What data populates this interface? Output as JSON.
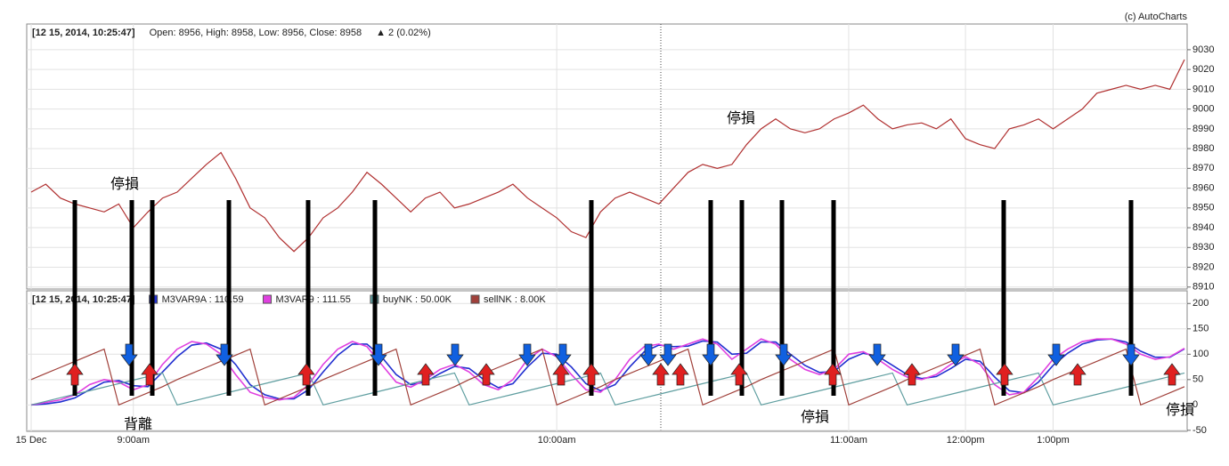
{
  "credit": "(c) AutoCharts",
  "annotations": [
    "停損",
    "停損",
    "背離",
    "停損",
    "停損"
  ],
  "chart_data": [
    {
      "type": "line",
      "header": [
        "[12 15, 2014, 10:25:47]",
        "Open: 8956, High: 8958, Low: 8956, Close: 8958",
        "▲ 2 (0.02%)"
      ],
      "series": [
        {
          "name": "Close",
          "color": "#b03030",
          "values": [
            8958,
            8962,
            8955,
            8952,
            8950,
            8948,
            8952,
            8940,
            8948,
            8955,
            8958,
            8965,
            8972,
            8978,
            8965,
            8950,
            8945,
            8935,
            8928,
            8935,
            8945,
            8950,
            8958,
            8968,
            8962,
            8955,
            8948,
            8955,
            8958,
            8950,
            8952,
            8955,
            8958,
            8962,
            8955,
            8950,
            8945,
            8938,
            8935,
            8948,
            8955,
            8958,
            8955,
            8952,
            8960,
            8968,
            8972,
            8970,
            8972,
            8982,
            8990,
            8995,
            8990,
            8988,
            8990,
            8995,
            8998,
            9002,
            8995,
            8990,
            8992,
            8993,
            8990,
            8995,
            8985,
            8982,
            8980,
            8990,
            8992,
            8995,
            8990,
            8995,
            9000,
            9008,
            9010,
            9012,
            9010,
            9012,
            9010,
            9025
          ]
        }
      ],
      "ylim": [
        8909,
        9043
      ],
      "yticks": [
        8910,
        8920,
        8930,
        8940,
        8950,
        8960,
        8970,
        8980,
        8990,
        9000,
        9010,
        9020,
        9030
      ],
      "grid": true
    },
    {
      "type": "line",
      "header": [
        "[12 15, 2014, 10:25:47]"
      ],
      "categories": [
        "15 Dec",
        null,
        null,
        null,
        null,
        null,
        null,
        "9:00am",
        null,
        null,
        null,
        null,
        null,
        null,
        null,
        null,
        null,
        null,
        null,
        null,
        null,
        null,
        null,
        null,
        null,
        null,
        null,
        null,
        null,
        null,
        null,
        null,
        null,
        null,
        null,
        null,
        "10:00am",
        null,
        null,
        null,
        null,
        null,
        null,
        null,
        null,
        null,
        null,
        null,
        null,
        null,
        null,
        null,
        null,
        null,
        null,
        null,
        "11:00am",
        null,
        null,
        null,
        null,
        null,
        null,
        null,
        "12:00pm",
        null,
        null,
        null,
        null,
        null,
        "1:00pm",
        null,
        null,
        null,
        null,
        null,
        null,
        null,
        null,
        null
      ],
      "series": [
        {
          "name": "M3VAR9A : 110.59",
          "color": "#2230d0",
          "values": [
            0,
            2,
            6,
            14,
            30,
            45,
            48,
            38,
            36,
            65,
            95,
            118,
            122,
            110,
            80,
            40,
            20,
            12,
            12,
            30,
            65,
            98,
            120,
            120,
            95,
            60,
            40,
            45,
            62,
            76,
            72,
            50,
            34,
            42,
            75,
            102,
            100,
            75,
            42,
            28,
            40,
            75,
            105,
            118,
            115,
            116,
            126,
            124,
            100,
            102,
            124,
            124,
            100,
            78,
            64,
            66,
            90,
            102,
            96,
            78,
            60,
            52,
            56,
            72,
            90,
            86,
            55,
            28,
            24,
            45,
            78,
            102,
            120,
            128,
            130,
            124,
            106,
            94,
            94,
            110.59
          ]
        },
        {
          "name": "M3VAR9 : 111.55",
          "color": "#e040e0",
          "values": [
            0,
            5,
            10,
            20,
            40,
            50,
            45,
            30,
            40,
            80,
            110,
            125,
            120,
            100,
            60,
            25,
            15,
            10,
            15,
            40,
            80,
            110,
            125,
            115,
            80,
            45,
            35,
            50,
            70,
            80,
            65,
            40,
            30,
            50,
            90,
            110,
            95,
            60,
            30,
            25,
            50,
            90,
            115,
            120,
            110,
            120,
            130,
            120,
            90,
            110,
            130,
            120,
            90,
            70,
            60,
            70,
            100,
            105,
            90,
            70,
            55,
            50,
            60,
            80,
            95,
            80,
            40,
            20,
            25,
            55,
            90,
            110,
            125,
            130,
            130,
            120,
            100,
            90,
            95,
            111.55
          ]
        },
        {
          "name": "buyNK : 50.00K",
          "color": "#5f9ea0",
          "values": [
            0,
            7,
            14,
            21,
            28,
            35,
            42,
            49,
            56,
            63,
            0,
            7,
            14,
            21,
            28,
            35,
            42,
            49,
            56,
            63,
            0,
            7,
            14,
            21,
            28,
            35,
            42,
            49,
            56,
            63,
            0,
            7,
            14,
            21,
            28,
            35,
            42,
            49,
            56,
            63,
            0,
            7,
            14,
            21,
            28,
            35,
            42,
            49,
            56,
            63,
            0,
            7,
            14,
            21,
            28,
            35,
            42,
            49,
            56,
            63,
            0,
            7,
            14,
            21,
            28,
            35,
            42,
            49,
            56,
            63,
            0,
            7,
            14,
            21,
            28,
            35,
            42,
            49,
            56,
            63
          ]
        },
        {
          "name": "sellNK : 8.00K",
          "color": "#a0403a",
          "values": [
            50,
            62,
            74,
            86,
            98,
            110,
            0,
            12,
            24,
            36,
            50,
            62,
            74,
            86,
            98,
            110,
            0,
            12,
            24,
            36,
            50,
            62,
            74,
            86,
            98,
            110,
            0,
            12,
            24,
            36,
            50,
            62,
            74,
            86,
            98,
            110,
            0,
            12,
            24,
            36,
            50,
            62,
            74,
            86,
            98,
            110,
            0,
            12,
            24,
            36,
            50,
            62,
            74,
            86,
            98,
            110,
            0,
            12,
            24,
            36,
            50,
            62,
            74,
            86,
            98,
            110,
            0,
            12,
            24,
            36,
            50,
            62,
            74,
            86,
            98,
            110,
            0,
            12,
            24,
            36
          ]
        }
      ],
      "ylim": [
        -52,
        225
      ],
      "yticks": [
        -50,
        0,
        50,
        100,
        150,
        200
      ],
      "grid": true
    }
  ]
}
